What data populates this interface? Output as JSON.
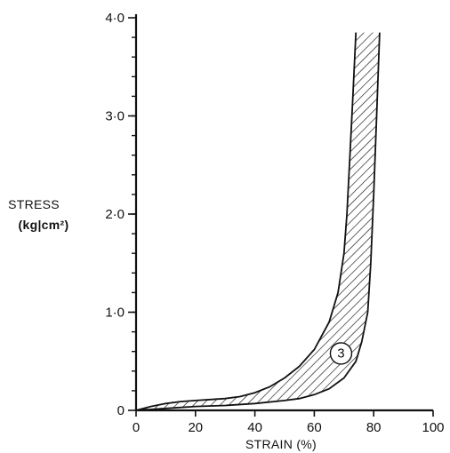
{
  "chart_data": {
    "type": "area",
    "xlabel": "STRAIN (%)",
    "ylabel": [
      "STRESS",
      "(kg|cm²)"
    ],
    "xlim": [
      0,
      100
    ],
    "ylim": [
      0,
      4.0
    ],
    "x_ticks": [
      0,
      20,
      40,
      60,
      80,
      100
    ],
    "x_tick_labels": [
      "0",
      "20",
      "40",
      "60",
      "80",
      "100"
    ],
    "y_ticks": [
      0,
      1.0,
      2.0,
      3.0,
      4.0
    ],
    "y_tick_labels": [
      "0",
      "1·0",
      "2·0",
      "3·0",
      "4·0"
    ],
    "grid": false,
    "fill": "hatched",
    "region_label": "3",
    "region_label_at": [
      69,
      0.58
    ],
    "series": [
      {
        "x": [
          0,
          5,
          10,
          15,
          20,
          25,
          30,
          35,
          40,
          45,
          50,
          55,
          60,
          65,
          68,
          70,
          71,
          72,
          73,
          74
        ],
        "y": [
          0,
          0.04,
          0.07,
          0.09,
          0.1,
          0.11,
          0.12,
          0.14,
          0.18,
          0.24,
          0.33,
          0.45,
          0.62,
          0.9,
          1.2,
          1.6,
          2.0,
          2.6,
          3.2,
          3.85
        ]
      },
      {
        "x": [
          0,
          10,
          20,
          30,
          40,
          50,
          55,
          60,
          65,
          70,
          74,
          76,
          78,
          79,
          80,
          81,
          82
        ],
        "y": [
          0,
          0.02,
          0.04,
          0.05,
          0.07,
          0.1,
          0.12,
          0.16,
          0.22,
          0.33,
          0.5,
          0.7,
          1.0,
          1.5,
          2.2,
          3.0,
          3.85
        ]
      }
    ]
  }
}
